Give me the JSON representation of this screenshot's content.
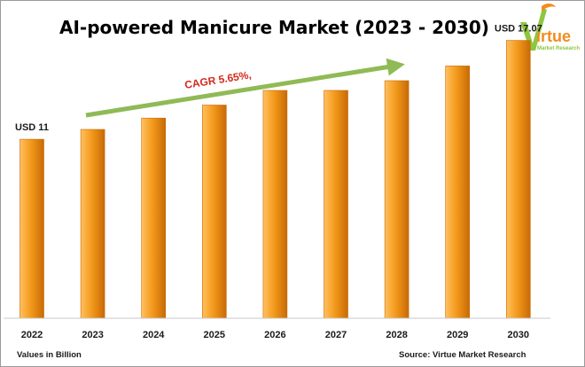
{
  "title": "AI-powered Manicure Market (2023 - 2030)",
  "logo": {
    "wordmark": "irtue",
    "tagline": "Market Research"
  },
  "units_note": "Values in Billion",
  "source_note": "Source: Virtue Market Research",
  "colors": {
    "bar_light": "#ffc060",
    "bar_mid": "#f39a1c",
    "bar_dark": "#c86a06",
    "arrow": "#8fba55",
    "cagr_text": "#d42a1e",
    "logo_green": "#8dc63f",
    "logo_orange": "#f28c1e"
  },
  "chart_data": {
    "type": "bar",
    "categories": [
      "2022",
      "2023",
      "2024",
      "2025",
      "2026",
      "2027",
      "2028",
      "2029",
      "2030"
    ],
    "values": [
      11.0,
      11.6,
      12.3,
      13.1,
      14.0,
      14.0,
      14.6,
      15.5,
      17.07
    ],
    "ylim": [
      0,
      19.5
    ],
    "data_labels": [
      {
        "index": 0,
        "text": "USD 11"
      },
      {
        "index": 8,
        "text": "USD 17.07"
      }
    ],
    "annotation": {
      "text": "CAGR 5.65%,",
      "arrow": "trend arrow rising from 2023 to 2028"
    },
    "grid": false,
    "legend": "none"
  }
}
